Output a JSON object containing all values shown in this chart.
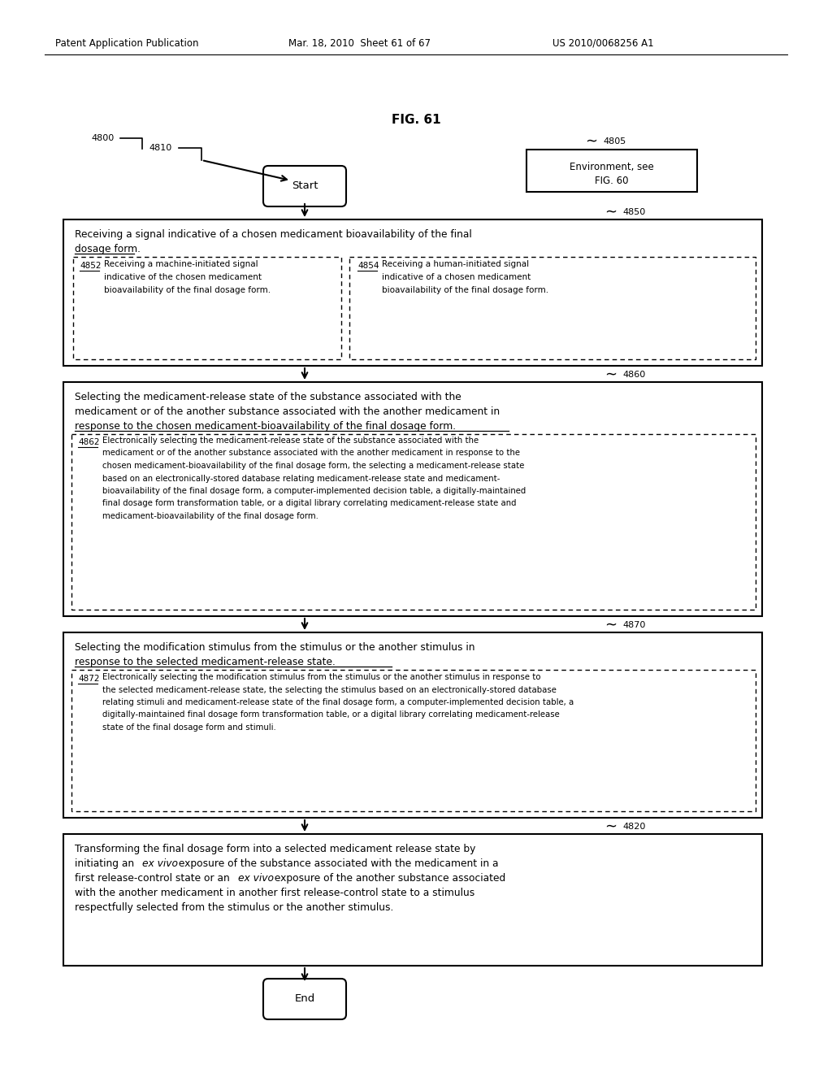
{
  "header_left": "Patent Application Publication",
  "header_mid": "Mar. 18, 2010  Sheet 61 of 67",
  "header_right": "US 2010/0068256 A1",
  "fig_title": "FIG. 61",
  "bg_color": "#ffffff",
  "text_color": "#000000",
  "start_text": "Start",
  "end_text": "End",
  "env_text_1": "Environment, see",
  "env_text_2": "FIG. 60",
  "label_4800": "4800",
  "label_4810": "4810",
  "label_4805": "4805",
  "label_4850": "4850",
  "label_4860": "4860",
  "label_4870": "4870",
  "label_4820": "4820",
  "label_4852": "4852",
  "label_4854": "4854",
  "label_4862": "4862",
  "label_4872": "4872",
  "box1_line1": "Receiving a signal indicative of a chosen medicament bioavailability of the final",
  "box1_line2": "dosage form.",
  "box1_sub1_line1": "Receiving a machine-initiated signal",
  "box1_sub1_line2": "indicative of the chosen medicament",
  "box1_sub1_line3": "bioavailability of the final dosage form.",
  "box1_sub2_line1": "Receiving a human-initiated signal",
  "box1_sub2_line2": "indicative of a chosen medicament",
  "box1_sub2_line3": "bioavailability of the final dosage form.",
  "box2_line1": "Selecting the medicament-release state of the substance associated with the",
  "box2_line2": "medicament or of the another substance associated with the another medicament in",
  "box2_line3": "response to the chosen medicament-bioavailability of the final dosage form.",
  "box2_sub_line1": "Electronically selecting the medicament-release state of the substance associated with the",
  "box2_sub_line2": "medicament or of the another substance associated with the another medicament in response to the",
  "box2_sub_line3": "chosen medicament-bioavailability of the final dosage form, the selecting a medicament-release state",
  "box2_sub_line4": "based on an electronically-stored database relating medicament-release state and medicament-",
  "box2_sub_line5": "bioavailability of the final dosage form, a computer-implemented decision table, a digitally-maintained",
  "box2_sub_line6": "final dosage form transformation table, or a digital library correlating medicament-release state and",
  "box2_sub_line7": "medicament-bioavailability of the final dosage form.",
  "box3_line1": "Selecting the modification stimulus from the stimulus or the another stimulus in",
  "box3_line2": "response to the selected medicament-release state.",
  "box3_sub_line1": "Electronically selecting the modification stimulus from the stimulus or the another stimulus in response to",
  "box3_sub_line2": "the selected medicament-release state, the selecting the stimulus based on an electronically-stored database",
  "box3_sub_line3": "relating stimuli and medicament-release state of the final dosage form, a computer-implemented decision table, a",
  "box3_sub_line4": "digitally-maintained final dosage form transformation table, or a digital library correlating medicament-release",
  "box3_sub_line5": "state of the final dosage form and stimuli.",
  "box4_line1": "Transforming the final dosage form into a selected medicament release state by",
  "box4_line2a": "initiating an ",
  "box4_line2b": "ex vivo",
  "box4_line2c": " exposure of the substance associated with the medicament in a",
  "box4_line3a": "first release-control state or an ",
  "box4_line3b": "ex vivo",
  "box4_line3c": " exposure of the another substance associated",
  "box4_line4": "with the another medicament in another first release-control state to a stimulus",
  "box4_line5": "respectfully selected from the stimulus or the another stimulus."
}
